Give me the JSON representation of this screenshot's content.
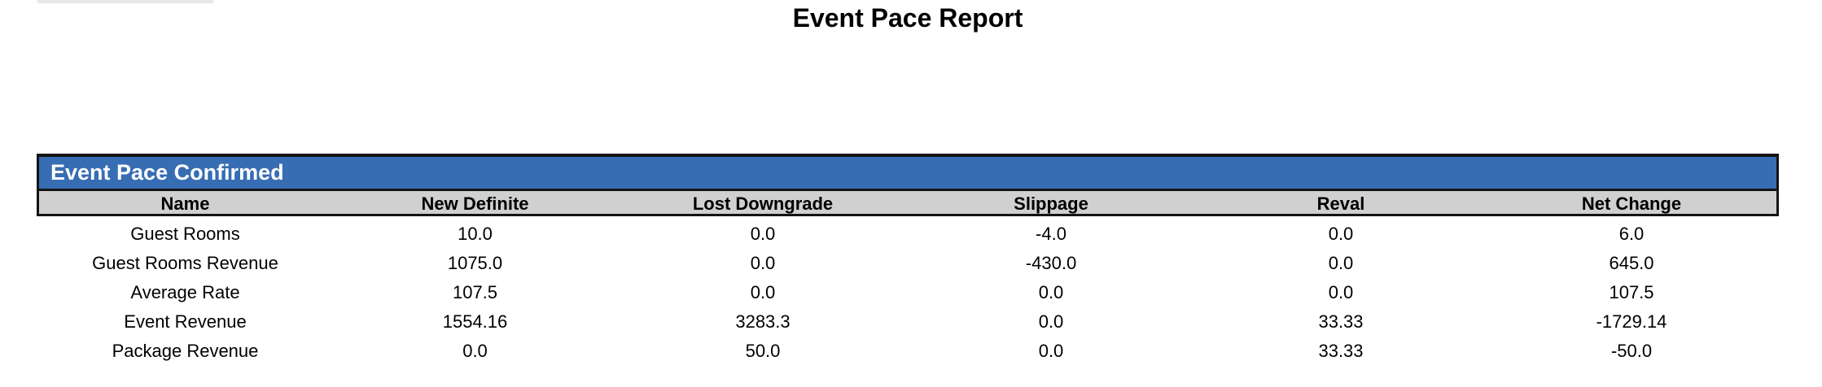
{
  "page": {
    "title": "Event Pace Report"
  },
  "report": {
    "section_title": "Event Pace Confirmed",
    "columns": [
      "Name",
      "New Definite",
      "Lost Downgrade",
      "Slippage",
      "Reval",
      "Net Change"
    ],
    "rows": [
      [
        "Guest Rooms",
        "10.0",
        "0.0",
        "-4.0",
        "0.0",
        "6.0"
      ],
      [
        "Guest Rooms Revenue",
        "1075.0",
        "0.0",
        "-430.0",
        "0.0",
        "645.0"
      ],
      [
        "Average Rate",
        "107.5",
        "0.0",
        "0.0",
        "0.0",
        "107.5"
      ],
      [
        "Event Revenue",
        "1554.16",
        "3283.3",
        "0.0",
        "33.33",
        "-1729.14"
      ],
      [
        "Package Revenue",
        "0.0",
        "50.0",
        "0.0",
        "33.33",
        "-50.0"
      ]
    ]
  },
  "colors": {
    "section_band_blue": "#376db3",
    "column_header_gray": "#d0d0d0",
    "table_border_dark": "#141414",
    "top_fragment_gray": "#e7e7e7"
  }
}
